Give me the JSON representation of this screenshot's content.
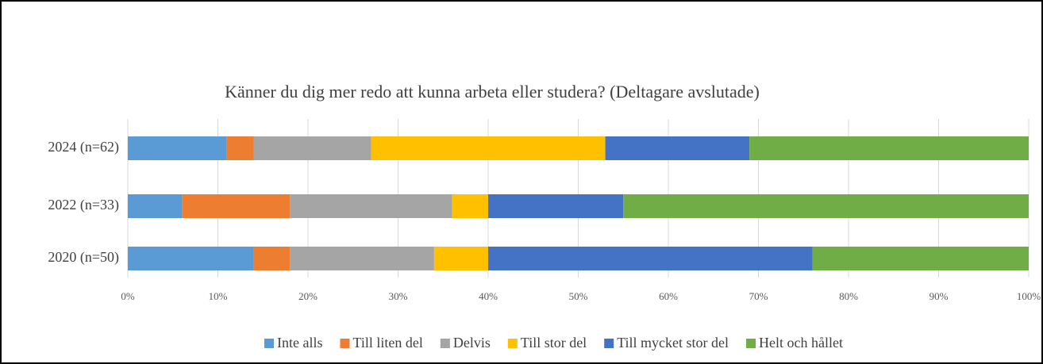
{
  "chart_data": {
    "type": "stacked_bar_horizontal",
    "title": "Känner du dig mer redo att kunna arbeta eller studera? (Deltagare avslutade)",
    "categories": [
      "2024 (n=62)",
      "2022 (n=33)",
      "2020 (n=50)"
    ],
    "series": [
      {
        "name": "Inte alls",
        "color": "#5b9bd5",
        "values": [
          11,
          6,
          14
        ]
      },
      {
        "name": "Till liten del",
        "color": "#ed7d31",
        "values": [
          3,
          12,
          4
        ]
      },
      {
        "name": "Delvis",
        "color": "#a5a5a5",
        "values": [
          13,
          18,
          16
        ]
      },
      {
        "name": "Till stor del",
        "color": "#ffc000",
        "values": [
          26,
          4,
          6
        ]
      },
      {
        "name": "Till mycket stor del",
        "color": "#4472c4",
        "values": [
          16,
          15,
          36
        ]
      },
      {
        "name": "Helt och hållet",
        "color": "#70ad47",
        "values": [
          31,
          45,
          24
        ]
      }
    ],
    "xlim": [
      0,
      100
    ],
    "xticks": [
      {
        "value": 0,
        "label": "0%"
      },
      {
        "value": 10,
        "label": "10%"
      },
      {
        "value": 20,
        "label": "20%"
      },
      {
        "value": 30,
        "label": "30%"
      },
      {
        "value": 40,
        "label": "40%"
      },
      {
        "value": 50,
        "label": "50%"
      },
      {
        "value": 60,
        "label": "60%"
      },
      {
        "value": 70,
        "label": "70%"
      },
      {
        "value": 80,
        "label": "80%"
      },
      {
        "value": 90,
        "label": "90%"
      },
      {
        "value": 100,
        "label": "100%"
      }
    ],
    "grid": true,
    "legend": "bottom"
  }
}
